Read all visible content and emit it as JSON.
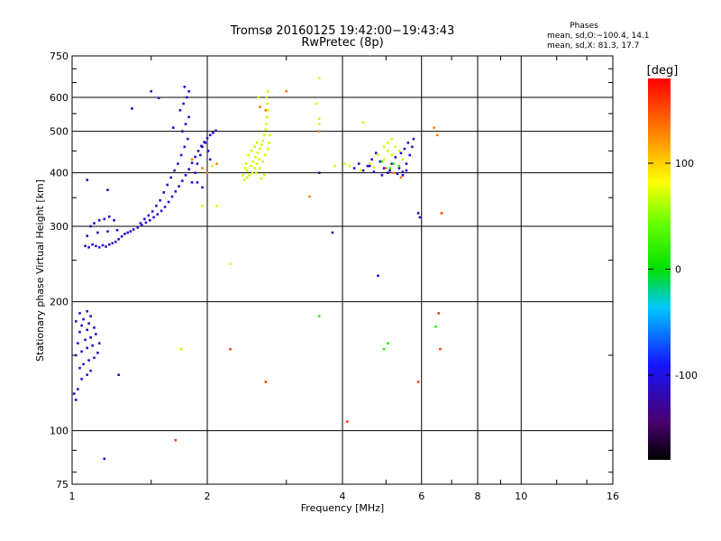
{
  "chart_data": {
    "type": "scatter",
    "title": "Tromsø 20160125 19:42:00−19:43:43",
    "subtitle": "RwPretec (8p)",
    "xlabel": "Frequency [MHz]",
    "ylabel": "Stationary phase Virtual Height [km]",
    "x_scale": "log",
    "y_scale": "log",
    "xlim": [
      1,
      16
    ],
    "ylim": [
      75,
      750
    ],
    "x_ticks": [
      1,
      2,
      4,
      6,
      8,
      10,
      16
    ],
    "y_ticks": [
      75,
      100,
      200,
      300,
      400,
      500,
      600,
      750
    ],
    "grid": true,
    "stats": {
      "heading": "Phases",
      "line_o": "mean, sd,O:−100.4, 14.1",
      "line_x": "mean, sd,X:  81.3, 17.7"
    },
    "colorbar": {
      "label": "[deg]",
      "range": [
        -180,
        180
      ],
      "ticks": [
        100,
        0,
        -100
      ]
    },
    "series": [
      {
        "color_deg": -110,
        "points": [
          [
            1.02,
            118
          ],
          [
            1.01,
            122
          ],
          [
            1.03,
            125
          ],
          [
            1.05,
            132
          ],
          [
            1.08,
            135
          ],
          [
            1.1,
            138
          ],
          [
            1.04,
            140
          ],
          [
            1.06,
            143
          ],
          [
            1.09,
            146
          ],
          [
            1.12,
            148
          ],
          [
            1.02,
            150
          ],
          [
            1.05,
            153
          ],
          [
            1.08,
            156
          ],
          [
            1.11,
            158
          ],
          [
            1.03,
            160
          ],
          [
            1.07,
            163
          ],
          [
            1.1,
            165
          ],
          [
            1.13,
            168
          ],
          [
            1.04,
            170
          ],
          [
            1.08,
            172
          ],
          [
            1.12,
            174
          ],
          [
            1.05,
            176
          ],
          [
            1.09,
            178
          ],
          [
            1.02,
            180
          ],
          [
            1.06,
            182
          ],
          [
            1.1,
            185
          ],
          [
            1.04,
            188
          ],
          [
            1.08,
            190
          ],
          [
            1.14,
            152
          ],
          [
            1.15,
            160
          ],
          [
            1.07,
            270
          ],
          [
            1.09,
            268
          ],
          [
            1.11,
            272
          ],
          [
            1.13,
            270
          ],
          [
            1.15,
            268
          ],
          [
            1.17,
            271
          ],
          [
            1.19,
            269
          ],
          [
            1.21,
            272
          ],
          [
            1.23,
            274
          ],
          [
            1.25,
            276
          ],
          [
            1.27,
            280
          ],
          [
            1.29,
            284
          ],
          [
            1.31,
            288
          ],
          [
            1.33,
            290
          ],
          [
            1.35,
            292
          ],
          [
            1.37,
            295
          ],
          [
            1.4,
            298
          ],
          [
            1.43,
            302
          ],
          [
            1.46,
            306
          ],
          [
            1.49,
            310
          ],
          [
            1.52,
            315
          ],
          [
            1.55,
            320
          ],
          [
            1.58,
            326
          ],
          [
            1.61,
            333
          ],
          [
            1.64,
            342
          ],
          [
            1.67,
            352
          ],
          [
            1.7,
            362
          ],
          [
            1.73,
            372
          ],
          [
            1.76,
            383
          ],
          [
            1.79,
            395
          ],
          [
            1.82,
            408
          ],
          [
            1.85,
            422
          ],
          [
            1.88,
            436
          ],
          [
            1.91,
            450
          ],
          [
            1.94,
            462
          ],
          [
            1.97,
            472
          ],
          [
            2.0,
            482
          ],
          [
            2.03,
            490
          ],
          [
            2.06,
            496
          ],
          [
            2.09,
            502
          ],
          [
            1.72,
            420
          ],
          [
            1.75,
            440
          ],
          [
            1.78,
            460
          ],
          [
            1.81,
            480
          ],
          [
            1.76,
            500
          ],
          [
            1.79,
            520
          ],
          [
            1.82,
            540
          ],
          [
            1.74,
            560
          ],
          [
            1.77,
            580
          ],
          [
            1.8,
            600
          ],
          [
            1.82,
            620
          ],
          [
            1.78,
            635
          ],
          [
            1.85,
            380
          ],
          [
            1.88,
            400
          ],
          [
            1.9,
            420
          ],
          [
            1.93,
            440
          ],
          [
            1.95,
            460
          ],
          [
            1.98,
            470
          ],
          [
            2.01,
            450
          ],
          [
            2.03,
            430
          ],
          [
            1.6,
            360
          ],
          [
            1.63,
            375
          ],
          [
            1.66,
            390
          ],
          [
            1.69,
            405
          ],
          [
            1.57,
            345
          ],
          [
            1.54,
            335
          ],
          [
            1.51,
            325
          ],
          [
            1.48,
            318
          ],
          [
            1.45,
            312
          ],
          [
            1.42,
            305
          ],
          [
            1.1,
            300
          ],
          [
            1.12,
            305
          ],
          [
            1.15,
            310
          ],
          [
            1.18,
            312
          ],
          [
            1.21,
            316
          ],
          [
            1.24,
            310
          ],
          [
            1.08,
            285
          ],
          [
            1.14,
            290
          ],
          [
            1.2,
            292
          ],
          [
            1.26,
            294
          ],
          [
            1.08,
            385
          ],
          [
            1.2,
            365
          ],
          [
            1.36,
            565
          ],
          [
            1.5,
            620
          ],
          [
            1.56,
            598
          ],
          [
            1.68,
            510
          ],
          [
            1.9,
            380
          ],
          [
            1.95,
            370
          ],
          [
            4.25,
            410
          ],
          [
            4.35,
            420
          ],
          [
            4.45,
            405
          ],
          [
            4.55,
            415
          ],
          [
            4.65,
            430
          ],
          [
            4.75,
            445
          ],
          [
            4.85,
            425
          ],
          [
            4.95,
            410
          ],
          [
            5.05,
            400
          ],
          [
            5.15,
            420
          ],
          [
            5.25,
            435
          ],
          [
            5.35,
            410
          ],
          [
            5.45,
            402
          ],
          [
            5.55,
            420
          ],
          [
            5.65,
            440
          ],
          [
            5.72,
            460
          ],
          [
            5.76,
            480
          ],
          [
            5.6,
            470
          ],
          [
            5.5,
            455
          ],
          [
            5.4,
            445
          ],
          [
            5.3,
            398
          ],
          [
            5.1,
            405
          ],
          [
            4.9,
            395
          ],
          [
            4.7,
            402
          ],
          [
            4.6,
            415
          ],
          [
            5.55,
            405
          ],
          [
            5.45,
            395
          ],
          [
            1.18,
            86
          ],
          [
            1.27,
            135
          ],
          [
            3.55,
            400
          ],
          [
            3.8,
            290
          ],
          [
            4.8,
            230
          ],
          [
            5.9,
            322
          ],
          [
            5.95,
            315
          ]
        ]
      },
      {
        "color_deg": 70,
        "points": [
          [
            2.42,
            385
          ],
          [
            2.45,
            390
          ],
          [
            2.48,
            395
          ],
          [
            2.52,
            400
          ],
          [
            2.55,
            410
          ],
          [
            2.58,
            420
          ],
          [
            2.61,
            430
          ],
          [
            2.45,
            405
          ],
          [
            2.5,
            415
          ],
          [
            2.53,
            425
          ],
          [
            2.56,
            435
          ],
          [
            2.59,
            445
          ],
          [
            2.62,
            455
          ],
          [
            2.64,
            465
          ],
          [
            2.66,
            475
          ],
          [
            2.68,
            490
          ],
          [
            2.7,
            505
          ],
          [
            2.71,
            520
          ],
          [
            2.72,
            540
          ],
          [
            2.73,
            560
          ],
          [
            2.72,
            580
          ],
          [
            2.71,
            600
          ],
          [
            2.73,
            620
          ],
          [
            2.47,
            440
          ],
          [
            2.51,
            450
          ],
          [
            2.55,
            460
          ],
          [
            2.58,
            470
          ],
          [
            2.44,
            420
          ],
          [
            2.4,
            395
          ],
          [
            2.43,
            410
          ],
          [
            2.57,
            400
          ],
          [
            2.62,
            410
          ],
          [
            2.66,
            425
          ],
          [
            2.69,
            440
          ],
          [
            2.73,
            455
          ],
          [
            2.75,
            470
          ],
          [
            2.76,
            490
          ],
          [
            2.68,
            395
          ],
          [
            2.64,
            388
          ],
          [
            4.05,
            420
          ],
          [
            4.15,
            415
          ],
          [
            4.6,
            420
          ],
          [
            4.8,
            440
          ],
          [
            4.95,
            460
          ],
          [
            5.05,
            470
          ],
          [
            5.15,
            480
          ],
          [
            5.25,
            460
          ],
          [
            5.35,
            450
          ],
          [
            5.45,
            430
          ],
          [
            5.15,
            440
          ],
          [
            5.05,
            450
          ],
          [
            4.95,
            430
          ],
          [
            4.7,
            412
          ],
          [
            4.4,
            405
          ],
          [
            3.55,
            520
          ],
          [
            3.55,
            535
          ],
          [
            3.5,
            580
          ],
          [
            3.55,
            665
          ],
          [
            4.45,
            525
          ],
          [
            3.85,
            415
          ],
          [
            2.05,
            415
          ],
          [
            2.1,
            335
          ],
          [
            2.25,
            245
          ],
          [
            1.75,
            155
          ],
          [
            1.95,
            335
          ],
          [
            2.6,
            600
          ]
        ]
      },
      {
        "color_deg": 130,
        "points": [
          [
            1.85,
            430
          ],
          [
            1.95,
            410
          ],
          [
            2.0,
            400
          ],
          [
            2.1,
            420
          ],
          [
            2.62,
            570
          ],
          [
            2.7,
            560
          ],
          [
            3.38,
            352
          ],
          [
            3.55,
            500
          ],
          [
            5.0,
            410
          ],
          [
            5.2,
            400
          ],
          [
            5.4,
            390
          ],
          [
            6.5,
            490
          ],
          [
            6.4,
            510
          ],
          [
            3.0,
            620
          ]
        ]
      },
      {
        "color_deg": 20,
        "points": [
          [
            3.55,
            185
          ],
          [
            4.95,
            155
          ],
          [
            5.05,
            160
          ],
          [
            5.1,
            410
          ],
          [
            5.2,
            420
          ],
          [
            5.35,
            415
          ],
          [
            4.9,
            425
          ],
          [
            6.45,
            175
          ]
        ]
      },
      {
        "color_deg": 155,
        "points": [
          [
            2.25,
            155
          ],
          [
            1.7,
            95
          ],
          [
            6.55,
            188
          ],
          [
            6.65,
            322
          ],
          [
            6.6,
            155
          ],
          [
            4.1,
            105
          ],
          [
            5.9,
            130
          ],
          [
            2.7,
            130
          ]
        ]
      }
    ]
  }
}
